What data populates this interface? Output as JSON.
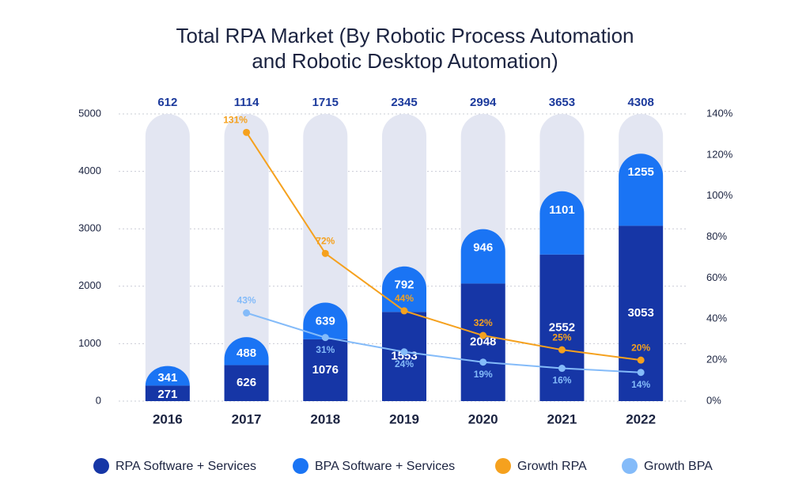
{
  "chart_data": {
    "type": "bar",
    "title": [
      "Total RPA Market (By Robotic Process Automation",
      "and Robotic Desktop Automation)"
    ],
    "categories": [
      "2016",
      "2017",
      "2018",
      "2019",
      "2020",
      "2021",
      "2022"
    ],
    "totals": [
      612,
      1114,
      1715,
      2345,
      2994,
      3653,
      4308
    ],
    "series": [
      {
        "name": "RPA Software + Services",
        "color": "#1636a6",
        "values": [
          271,
          626,
          1076,
          1553,
          2048,
          2552,
          3053
        ]
      },
      {
        "name": "BPA Software + Services",
        "color": "#1a74f4",
        "values": [
          341,
          488,
          639,
          792,
          946,
          1101,
          1255
        ]
      },
      {
        "name": "Growth RPA",
        "color": "#f5a11e",
        "type": "line",
        "axis": "y2",
        "values": [
          null,
          131,
          72,
          44,
          32,
          25,
          20
        ],
        "value_labels": [
          null,
          "131%",
          "72%",
          "44%",
          "32%",
          "25%",
          "20%"
        ]
      },
      {
        "name": "Growth BPA",
        "color": "#84bbf9",
        "type": "line",
        "axis": "y2",
        "values": [
          null,
          43,
          31,
          24,
          19,
          16,
          14
        ],
        "value_labels": [
          null,
          "43%",
          "31%",
          "24%",
          "19%",
          "16%",
          "14%"
        ]
      }
    ],
    "ylim": [
      0,
      5000
    ],
    "yticks": [
      0,
      1000,
      2000,
      3000,
      4000,
      5000
    ],
    "y2lim": [
      0,
      140
    ],
    "y2ticks": [
      {
        "value": 0,
        "label": "0%"
      },
      {
        "value": 20,
        "label": "20%"
      },
      {
        "value": 40,
        "label": "40%"
      },
      {
        "value": 60,
        "label": "60%"
      },
      {
        "value": 80,
        "label": "80%"
      },
      {
        "value": 100,
        "label": "100%"
      },
      {
        "value": 120,
        "label": "120%"
      },
      {
        "value": 140,
        "label": "140%"
      }
    ],
    "grid": true,
    "stacked": true
  }
}
